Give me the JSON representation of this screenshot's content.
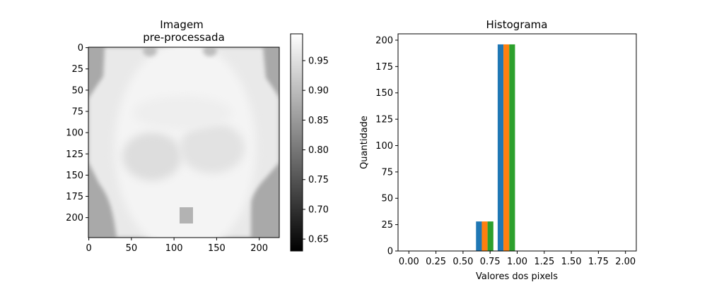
{
  "chart_data": [
    {
      "type": "image",
      "title_lines": [
        "Imagem",
        "pre-processada"
      ],
      "x_ticks": [
        0,
        50,
        100,
        150,
        200
      ],
      "y_ticks": [
        0,
        25,
        50,
        75,
        100,
        125,
        150,
        175,
        200
      ],
      "xlim": [
        -0.5,
        223.5
      ],
      "ylim": [
        223.5,
        -0.5
      ],
      "colormap": "gray",
      "colorbar": {
        "vmin": 0.63,
        "vmax": 0.995,
        "ticks": [
          0.65,
          0.7,
          0.75,
          0.8,
          0.85,
          0.9,
          0.95
        ],
        "tick_labels": [
          "0.65",
          "0.70",
          "0.75",
          "0.80",
          "0.85",
          "0.90",
          "0.95"
        ]
      }
    },
    {
      "type": "bar",
      "title": "Histograma",
      "xlabel": "Valores dos pixels",
      "ylabel": "Quantidade",
      "xlim": [
        -0.1,
        2.1
      ],
      "ylim": [
        0,
        206
      ],
      "x_ticks": [
        0.0,
        0.25,
        0.5,
        0.75,
        1.0,
        1.25,
        1.5,
        1.75,
        2.0
      ],
      "x_tick_labels": [
        "0.00",
        "0.25",
        "0.50",
        "0.75",
        "1.00",
        "1.25",
        "1.50",
        "1.75",
        "2.00"
      ],
      "y_ticks": [
        0,
        25,
        50,
        75,
        100,
        125,
        150,
        175,
        200
      ],
      "bin_width": 0.2,
      "bins": [
        0.6,
        0.8
      ],
      "series": [
        {
          "color": "#1f77b4",
          "values": [
            28,
            196
          ]
        },
        {
          "color": "#ff7f0e",
          "values": [
            28,
            196
          ]
        },
        {
          "color": "#2ca02c",
          "values": [
            28,
            196
          ]
        }
      ]
    }
  ]
}
